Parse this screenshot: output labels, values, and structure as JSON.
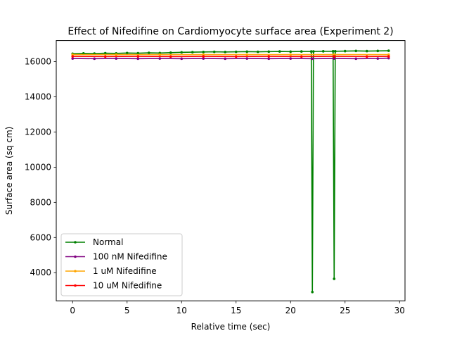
{
  "chart_data": {
    "type": "line",
    "title": "Effect of Nifedifine on Cardiomyocyte surface area (Experiment 2)",
    "xlabel": "Relative time (sec)",
    "ylabel": "Surface area (sq cm)",
    "xlim": [
      -1.5,
      30.5
    ],
    "ylim": [
      2400,
      17200
    ],
    "xticks": [
      0,
      5,
      10,
      15,
      20,
      25,
      30
    ],
    "yticks": [
      4000,
      6000,
      8000,
      10000,
      12000,
      14000,
      16000
    ],
    "grid": false,
    "legend_position": "lower-left",
    "series": [
      {
        "name": "Normal",
        "color": "#008000",
        "x": [
          0,
          1,
          2,
          3,
          4,
          5,
          6,
          7,
          8,
          9,
          10,
          11,
          12,
          13,
          14,
          15,
          16,
          17,
          18,
          19,
          20,
          21,
          21.9,
          22,
          22.1,
          23,
          23.9,
          24,
          24.1,
          25,
          26,
          27,
          28,
          29
        ],
        "y": [
          16450,
          16470,
          16460,
          16480,
          16470,
          16490,
          16480,
          16500,
          16490,
          16510,
          16530,
          16540,
          16550,
          16560,
          16550,
          16560,
          16570,
          16560,
          16570,
          16580,
          16570,
          16580,
          16580,
          2900,
          16580,
          16590,
          16590,
          3650,
          16590,
          16600,
          16610,
          16600,
          16610,
          16620
        ]
      },
      {
        "name": "100 nM Nifedifine",
        "color": "#800080",
        "x": [
          0,
          2,
          4,
          6,
          8,
          10,
          12,
          14,
          16,
          18,
          20,
          22,
          24,
          26,
          28,
          29
        ],
        "y": [
          16180,
          16170,
          16180,
          16170,
          16180,
          16170,
          16180,
          16170,
          16180,
          16170,
          16180,
          16170,
          16180,
          16170,
          16180,
          16200
        ]
      },
      {
        "name": "1 uM Nifedifine",
        "color": "#FFA500",
        "x": [
          0,
          4,
          8,
          12,
          16,
          20,
          24,
          29
        ],
        "y": [
          16400,
          16400,
          16400,
          16400,
          16400,
          16400,
          16400,
          16400
        ]
      },
      {
        "name": "10 uM Nifedifine",
        "color": "#FF0000",
        "x": [
          0,
          3,
          6,
          9,
          12,
          15,
          18,
          21,
          24,
          27,
          29
        ],
        "y": [
          16300,
          16290,
          16300,
          16290,
          16300,
          16290,
          16300,
          16290,
          16300,
          16290,
          16300
        ]
      }
    ]
  }
}
